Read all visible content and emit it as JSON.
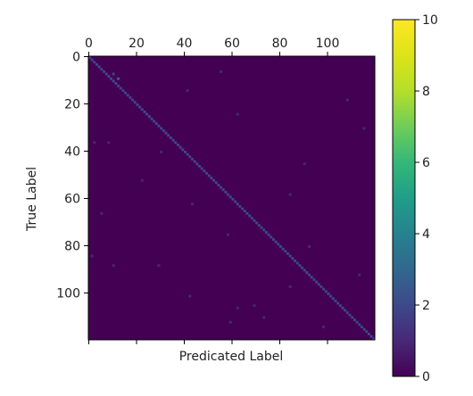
{
  "chart_data": {
    "type": "heatmap",
    "title": "",
    "xlabel": "Predicated Label",
    "ylabel": "True Label",
    "n_classes": 120,
    "xlim": [
      0,
      120
    ],
    "ylim": [
      0,
      120
    ],
    "x_ticks": [
      0,
      20,
      40,
      60,
      80,
      100
    ],
    "y_ticks": [
      0,
      20,
      40,
      60,
      80,
      100
    ],
    "x_tick_labels": [
      "0",
      "20",
      "40",
      "60",
      "80",
      "100"
    ],
    "y_tick_labels": [
      "0",
      "20",
      "40",
      "60",
      "80",
      "100"
    ],
    "colormap": "viridis",
    "colorbar": {
      "min": 0,
      "max": 10,
      "ticks": [
        0,
        2,
        4,
        6,
        8,
        10
      ],
      "tick_labels": [
        "0",
        "2",
        "4",
        "6",
        "8",
        "10"
      ]
    },
    "background_value": 0,
    "diagonal_value": 2,
    "off_diagonal_cells": [
      {
        "row": 7,
        "col": 10,
        "value": 2
      },
      {
        "row": 9,
        "col": 12,
        "value": 3
      },
      {
        "row": 6,
        "col": 55,
        "value": 1
      },
      {
        "row": 14,
        "col": 41,
        "value": 1
      },
      {
        "row": 36,
        "col": 8,
        "value": 1
      },
      {
        "row": 36,
        "col": 2,
        "value": 1
      },
      {
        "row": 52,
        "col": 22,
        "value": 1
      },
      {
        "row": 66,
        "col": 5,
        "value": 1
      },
      {
        "row": 88,
        "col": 10,
        "value": 1
      },
      {
        "row": 88,
        "col": 29,
        "value": 1
      },
      {
        "row": 75,
        "col": 58,
        "value": 1
      },
      {
        "row": 97,
        "col": 84,
        "value": 1
      },
      {
        "row": 105,
        "col": 69,
        "value": 1
      },
      {
        "row": 106,
        "col": 62,
        "value": 1
      },
      {
        "row": 110,
        "col": 73,
        "value": 1
      },
      {
        "row": 112,
        "col": 59,
        "value": 1
      },
      {
        "row": 101,
        "col": 42,
        "value": 1
      },
      {
        "row": 92,
        "col": 113,
        "value": 1
      },
      {
        "row": 30,
        "col": 115,
        "value": 1
      },
      {
        "row": 45,
        "col": 90,
        "value": 1
      },
      {
        "row": 58,
        "col": 84,
        "value": 1
      },
      {
        "row": 80,
        "col": 92,
        "value": 1
      },
      {
        "row": 24,
        "col": 62,
        "value": 1
      },
      {
        "row": 62,
        "col": 43,
        "value": 1
      },
      {
        "row": 114,
        "col": 98,
        "value": 1
      },
      {
        "row": 84,
        "col": 1,
        "value": 1
      },
      {
        "row": 18,
        "col": 108,
        "value": 1
      },
      {
        "row": 40,
        "col": 30,
        "value": 1
      }
    ]
  }
}
